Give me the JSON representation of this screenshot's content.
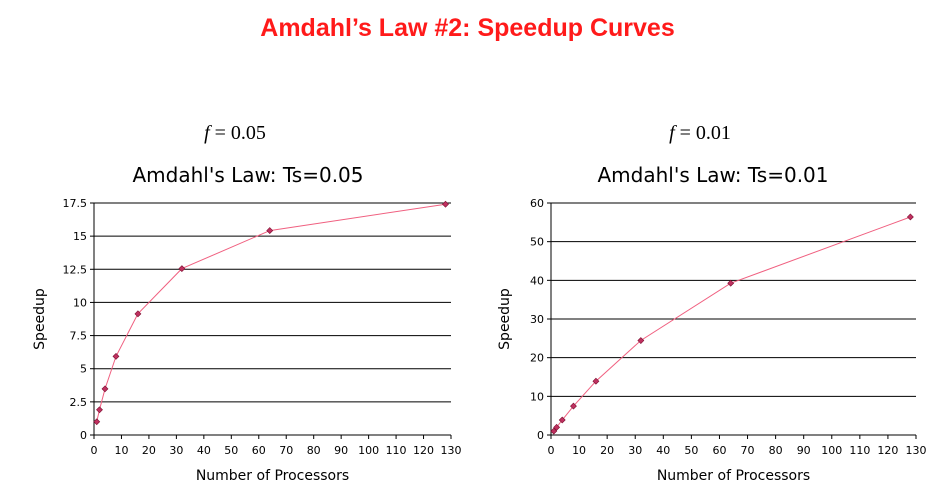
{
  "slide_title": "Amdahl’s Law #2: Speedup Curves",
  "charts": [
    {
      "f_var": "f",
      "f_value": "= 0.05"
    },
    {
      "f_var": "f",
      "f_value": "= 0.01"
    }
  ],
  "chart_data": [
    {
      "type": "line",
      "title": "Amdahl's Law: Ts=0.05",
      "xlabel": "Number of Processors",
      "ylabel": "Speedup",
      "xlim": [
        0,
        130
      ],
      "ylim": [
        0,
        17.5
      ],
      "x_ticks": [
        "0",
        "10",
        "20",
        "30",
        "40",
        "50",
        "60",
        "70",
        "80",
        "90",
        "100",
        "110",
        "120",
        "130"
      ],
      "y_ticks": [
        "0",
        "2.5",
        "5",
        "7.5",
        "10",
        "12.5",
        "15",
        "17.5"
      ],
      "grid": "horizontal",
      "line_color": "#f06080",
      "marker_color": "#c03060",
      "series": [
        {
          "x": [
            1,
            2,
            4,
            8,
            16,
            32,
            64,
            128
          ],
          "values": [
            1.0,
            1.9,
            3.48,
            5.93,
            9.14,
            12.55,
            15.42,
            17.41
          ]
        }
      ]
    },
    {
      "type": "line",
      "title": "Amdahl's Law: Ts=0.01",
      "xlabel": "Number of Processors",
      "ylabel": "Speedup",
      "xlim": [
        0,
        130
      ],
      "ylim": [
        0,
        60
      ],
      "x_ticks": [
        "0",
        "10",
        "20",
        "30",
        "40",
        "50",
        "60",
        "70",
        "80",
        "90",
        "100",
        "110",
        "120",
        "130"
      ],
      "y_ticks": [
        "0",
        "10",
        "20",
        "30",
        "40",
        "50",
        "60"
      ],
      "grid": "horizontal",
      "line_color": "#f06080",
      "marker_color": "#c03060",
      "series": [
        {
          "x": [
            1,
            2,
            4,
            8,
            16,
            32,
            64,
            128
          ],
          "values": [
            1.0,
            1.98,
            3.88,
            7.48,
            13.91,
            24.43,
            39.26,
            56.39
          ]
        }
      ]
    }
  ]
}
